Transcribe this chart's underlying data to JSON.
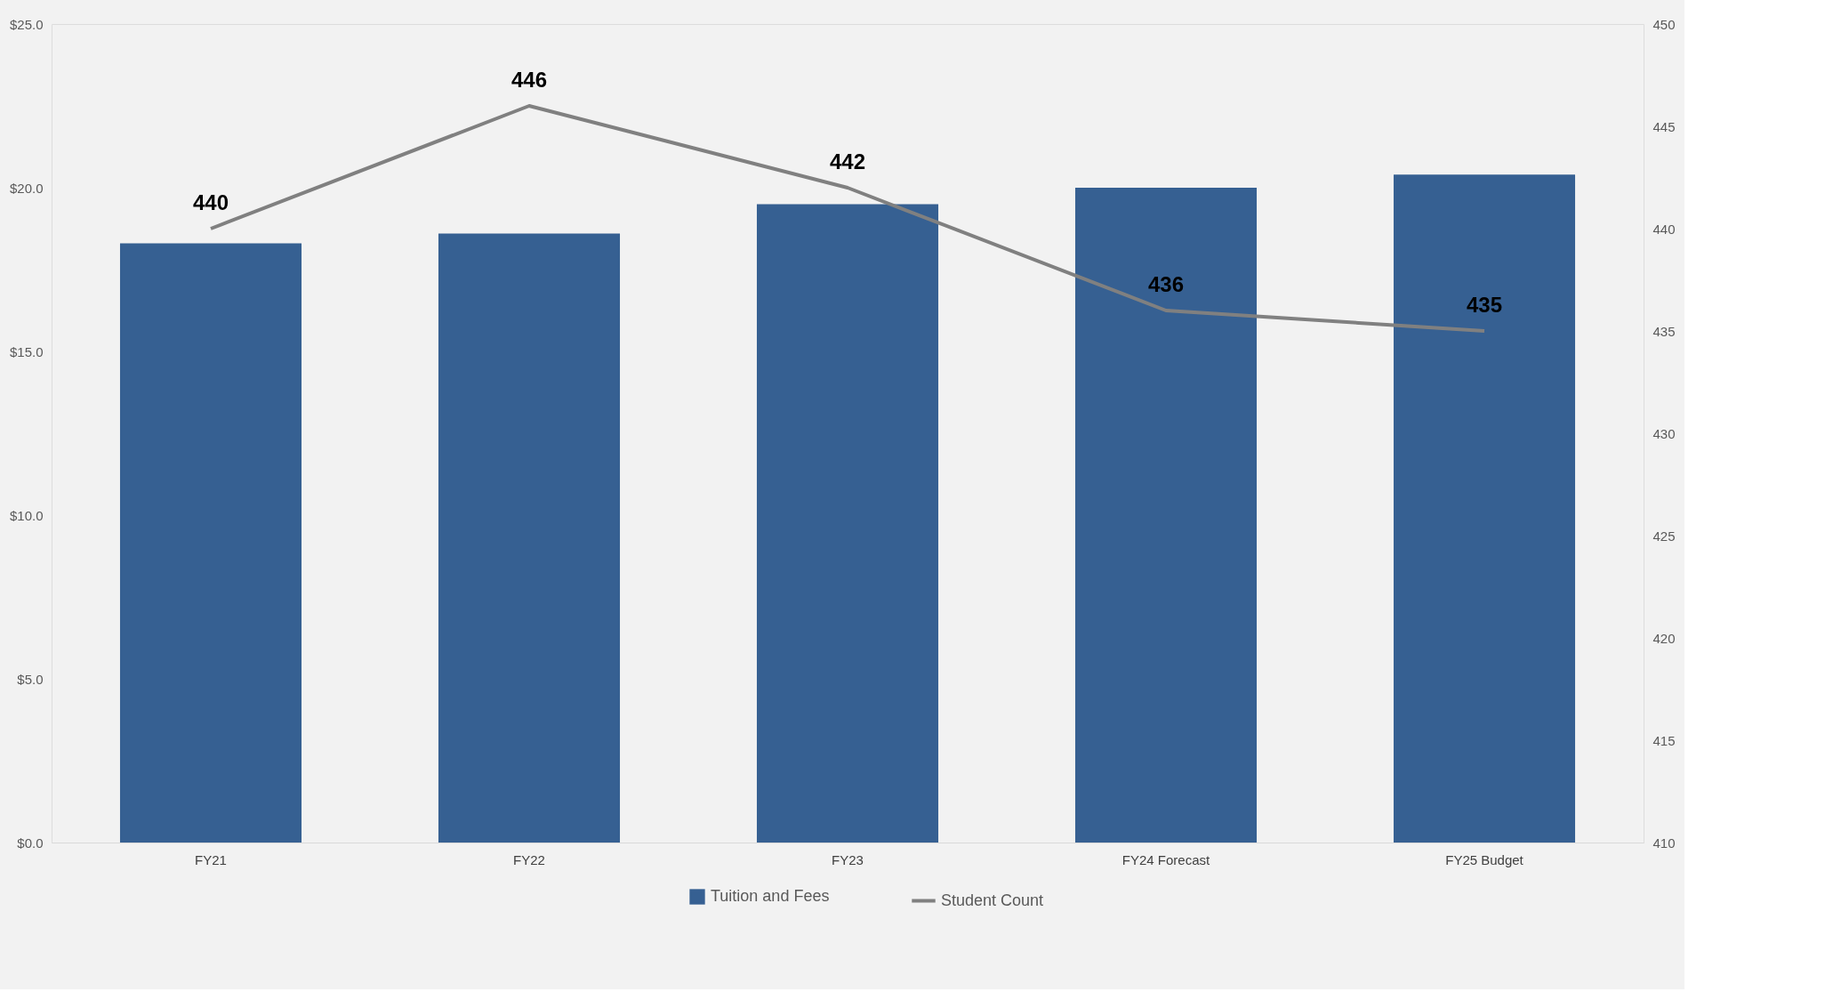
{
  "chart_data": {
    "type": "bar",
    "categories": [
      "FY21",
      "FY22",
      "FY23",
      "FY24 Forecast",
      "FY25 Budget"
    ],
    "series": [
      {
        "name": "Tuition and Fees",
        "color": "#366092",
        "values": [
          18.3,
          18.6,
          19.5,
          20.0,
          20.4
        ]
      },
      {
        "name": "Student Count",
        "type": "line",
        "axis": "y2",
        "color": "#808080",
        "values": [
          440,
          446,
          442,
          436,
          435
        ],
        "value_labels": [
          "440",
          "446",
          "442",
          "436",
          "435"
        ]
      }
    ],
    "ylim": [
      0,
      25
    ],
    "yticks": [
      {
        "value": 0,
        "label": "$0.0"
      },
      {
        "value": 5,
        "label": "$5.0"
      },
      {
        "value": 10,
        "label": "$10.0"
      },
      {
        "value": 15,
        "label": "$15.0"
      },
      {
        "value": 20,
        "label": "$20.0"
      },
      {
        "value": 25,
        "label": "$25.0"
      }
    ],
    "y2lim": [
      410,
      450
    ],
    "y2ticks": [
      410,
      415,
      420,
      425,
      430,
      435,
      440,
      445,
      450
    ],
    "grid": false,
    "legend": "bottom",
    "marker": "none"
  }
}
